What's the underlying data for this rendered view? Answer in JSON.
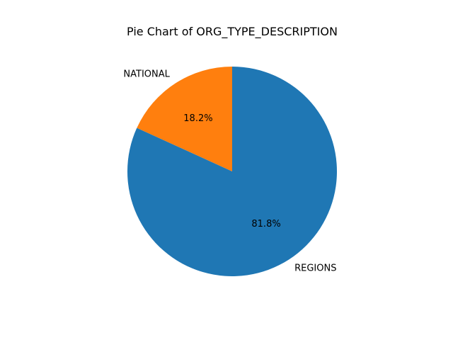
{
  "chart_data": {
    "type": "pie",
    "title": "Pie Chart of ORG_TYPE_DESCRIPTION",
    "slices": [
      {
        "label": "NATIONAL",
        "value": 18.2,
        "pct_label": "18.2%",
        "color": "#ff7f0e"
      },
      {
        "label": "REGIONS",
        "value": 81.8,
        "pct_label": "81.8%",
        "color": "#1f77b4"
      }
    ]
  }
}
